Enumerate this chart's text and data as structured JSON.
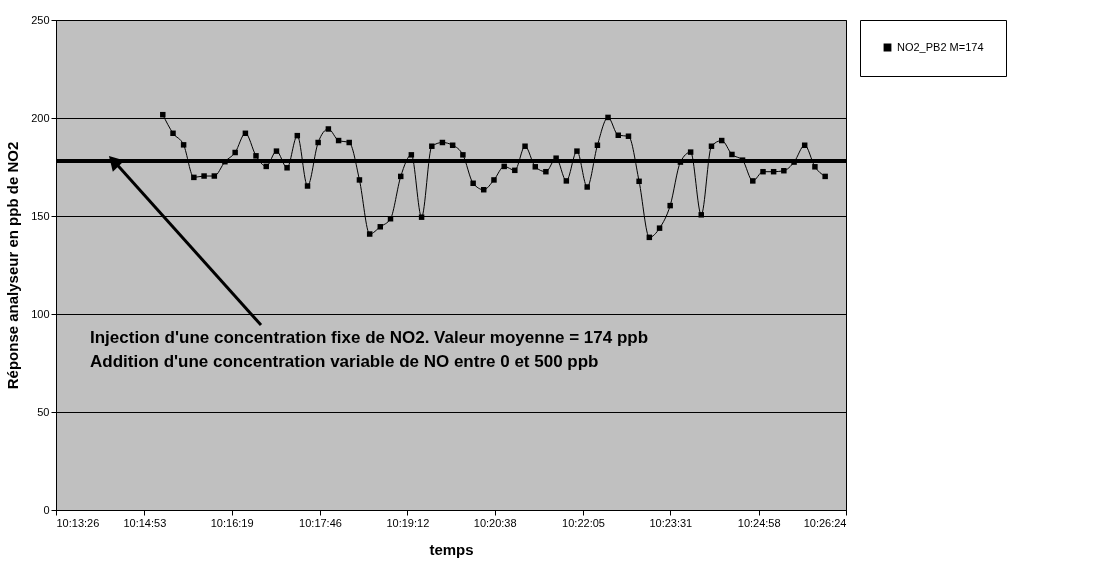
{
  "chart_data": {
    "type": "line",
    "xlabel": "temps",
    "ylabel": "Réponse analyseur en ppb de NO2",
    "x": [
      10.2531,
      10.2559,
      10.2588,
      10.2616,
      10.2644,
      10.2672,
      10.2701,
      10.2729,
      10.2757,
      10.2786,
      10.2814,
      10.2842,
      10.2871,
      10.2899,
      10.2927,
      10.2956,
      10.2984,
      10.3012,
      10.3041,
      10.3069,
      10.3097,
      10.3126,
      10.3154,
      10.3182,
      10.3211,
      10.3239,
      10.3267,
      10.3296,
      10.3324,
      10.3352,
      10.338,
      10.3409,
      10.3437,
      10.3465,
      10.3494,
      10.3522,
      10.355,
      10.3579,
      10.3607,
      10.3635,
      10.3664,
      10.3692,
      10.372,
      10.3749,
      10.3777,
      10.3805,
      10.3834,
      10.3862,
      10.389,
      10.3919,
      10.3947,
      10.3975,
      10.4004,
      10.4032,
      10.406,
      10.4088,
      10.4117,
      10.4145,
      10.4173,
      10.4202,
      10.423,
      10.4258,
      10.4287,
      10.4315,
      10.4343
    ],
    "series": [
      {
        "name": "NO2_PB2 M=174",
        "color": "#000000",
        "values": [
          201.7,
          192.2,
          186.3,
          169.7,
          170.4,
          170.4,
          177.7,
          182.4,
          192.2,
          180.7,
          175.3,
          183.1,
          174.6,
          191.0,
          165.3,
          187.5,
          194.4,
          188.5,
          187.5,
          168.4,
          140.8,
          144.5,
          148.6,
          170.2,
          181.2,
          149.4,
          185.6,
          187.5,
          186.1,
          181.2,
          166.7,
          163.4,
          168.4,
          175.3,
          173.3,
          185.6,
          175.1,
          172.6,
          179.5,
          167.9,
          183.1,
          164.8,
          186.1,
          200.3,
          191.2,
          190.7,
          167.7,
          139.1,
          143.8,
          155.3,
          177.5,
          182.6,
          150.6,
          185.6,
          188.5,
          181.4,
          178.5,
          167.9,
          172.6,
          172.6,
          173.1,
          177.5,
          186.1,
          175.1,
          170.2
        ]
      }
    ],
    "xlim": [
      10.22389,
      10.44
    ],
    "xticks": [
      {
        "value": 10.22389,
        "label": "10:13:26"
      },
      {
        "value": 10.24806,
        "label": "10:14:53"
      },
      {
        "value": 10.27194,
        "label": "10:16:19"
      },
      {
        "value": 10.29611,
        "label": "10:17:46"
      },
      {
        "value": 10.32,
        "label": "10:19:12"
      },
      {
        "value": 10.34389,
        "label": "10:20:38"
      },
      {
        "value": 10.36806,
        "label": "10:22:05"
      },
      {
        "value": 10.39194,
        "label": "10:23:31"
      },
      {
        "value": 10.41611,
        "label": "10:24:58"
      },
      {
        "value": 10.44,
        "label": "10:26:24"
      }
    ],
    "ylim": [
      0,
      250
    ],
    "yticks": [
      0,
      50,
      100,
      150,
      200,
      250
    ],
    "ref_lines": [
      {
        "axis": "y",
        "value": 178,
        "color": "#000000"
      }
    ],
    "annotations": [
      {
        "text": "Injection  d'une concentration fixe de NO2. Valeur moyenne = 174 ppb",
        "x": 10.2397,
        "y": 178
      },
      "Addition d'une concentration variable de NO entre 0 et 500 ppb"
    ],
    "grid": "y",
    "legend": "right",
    "marker": "square",
    "line_style": "solid"
  }
}
